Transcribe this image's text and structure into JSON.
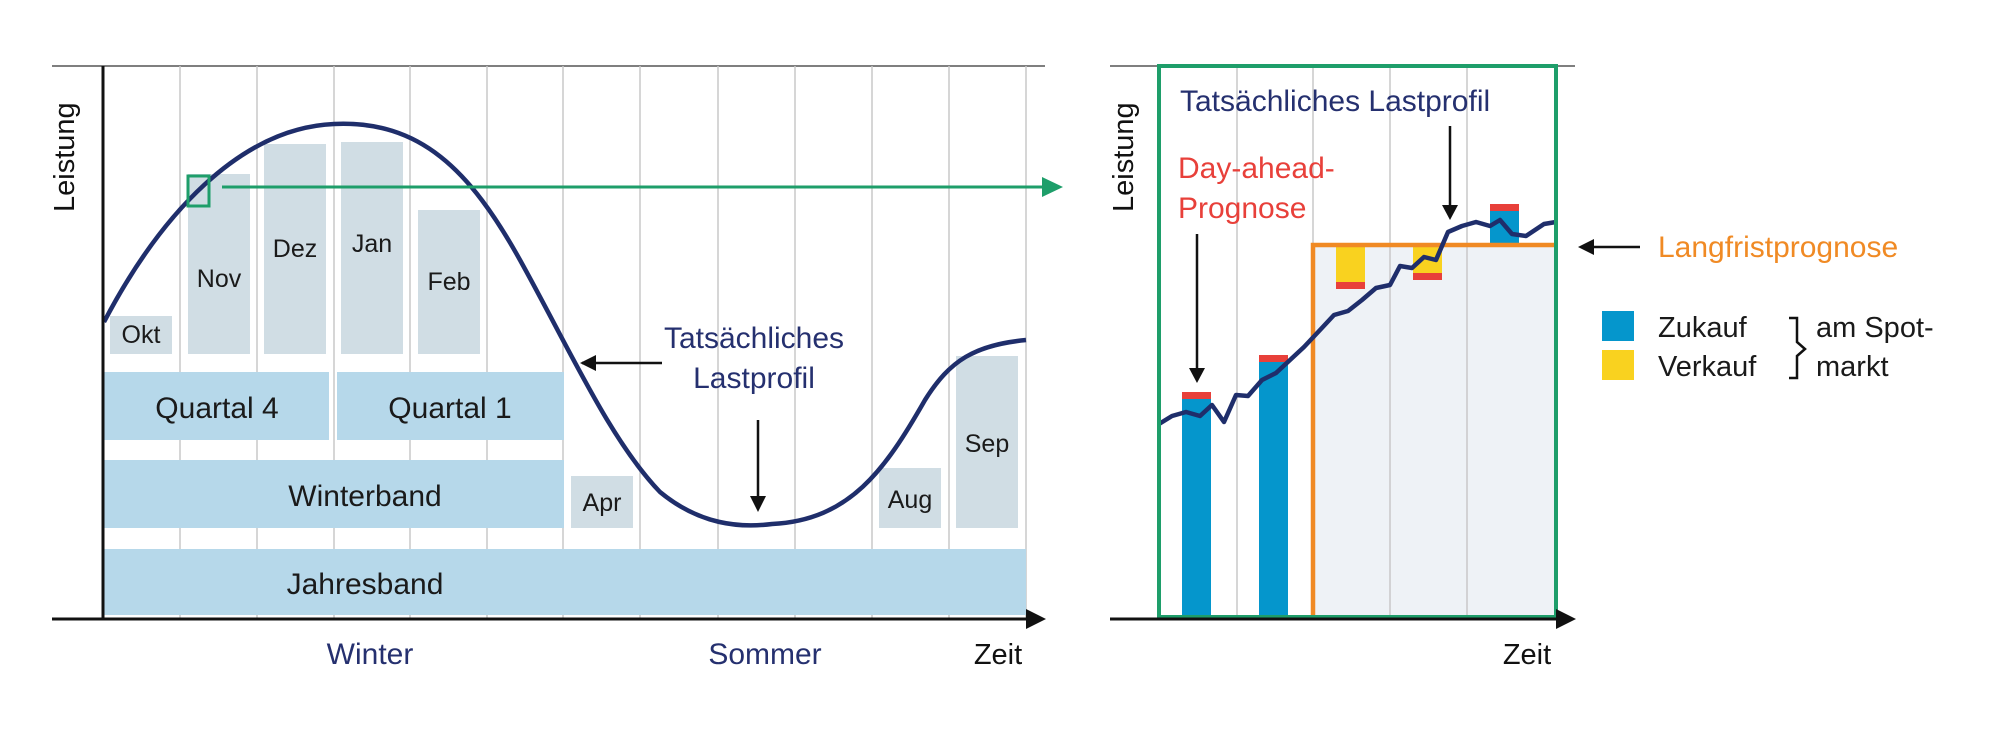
{
  "colors": {
    "band_blue": "#b6d8ea",
    "month_gray": "#d0dde4",
    "curve_navy": "#1f2e6b",
    "green": "#1e9e6a",
    "orange": "#f08a24",
    "red": "#e8403a",
    "yellow": "#f9d21f",
    "buy_blue": "#0596cc",
    "fill_light": "#eef2f6"
  },
  "left": {
    "y_axis": "Leistung",
    "x_axis": "Zeit",
    "seasons": {
      "winter": "Winter",
      "sommer": "Sommer"
    },
    "bands": {
      "jahresband": "Jahresband",
      "winterband": "Winterband",
      "quartal4": "Quartal 4",
      "quartal1": "Quartal 1"
    },
    "months": {
      "okt": "Okt",
      "nov": "Nov",
      "dez": "Dez",
      "jan": "Jan",
      "feb": "Feb",
      "apr": "Apr",
      "aug": "Aug",
      "sep": "Sep"
    },
    "curve_label_line1": "Tatsächliches",
    "curve_label_line2": "Lastprofil"
  },
  "right": {
    "y_axis": "Leistung",
    "x_axis": "Zeit",
    "title": "Tatsächliches Lastprofil",
    "dayahead_line1": "Day-ahead-",
    "dayahead_line2": "Prognose",
    "langfrist": "Langfristprognose",
    "legend": {
      "zukauf": "Zukauf",
      "verkauf": "Verkauf",
      "spot_line1": "am Spot-",
      "spot_line2": "markt"
    }
  }
}
